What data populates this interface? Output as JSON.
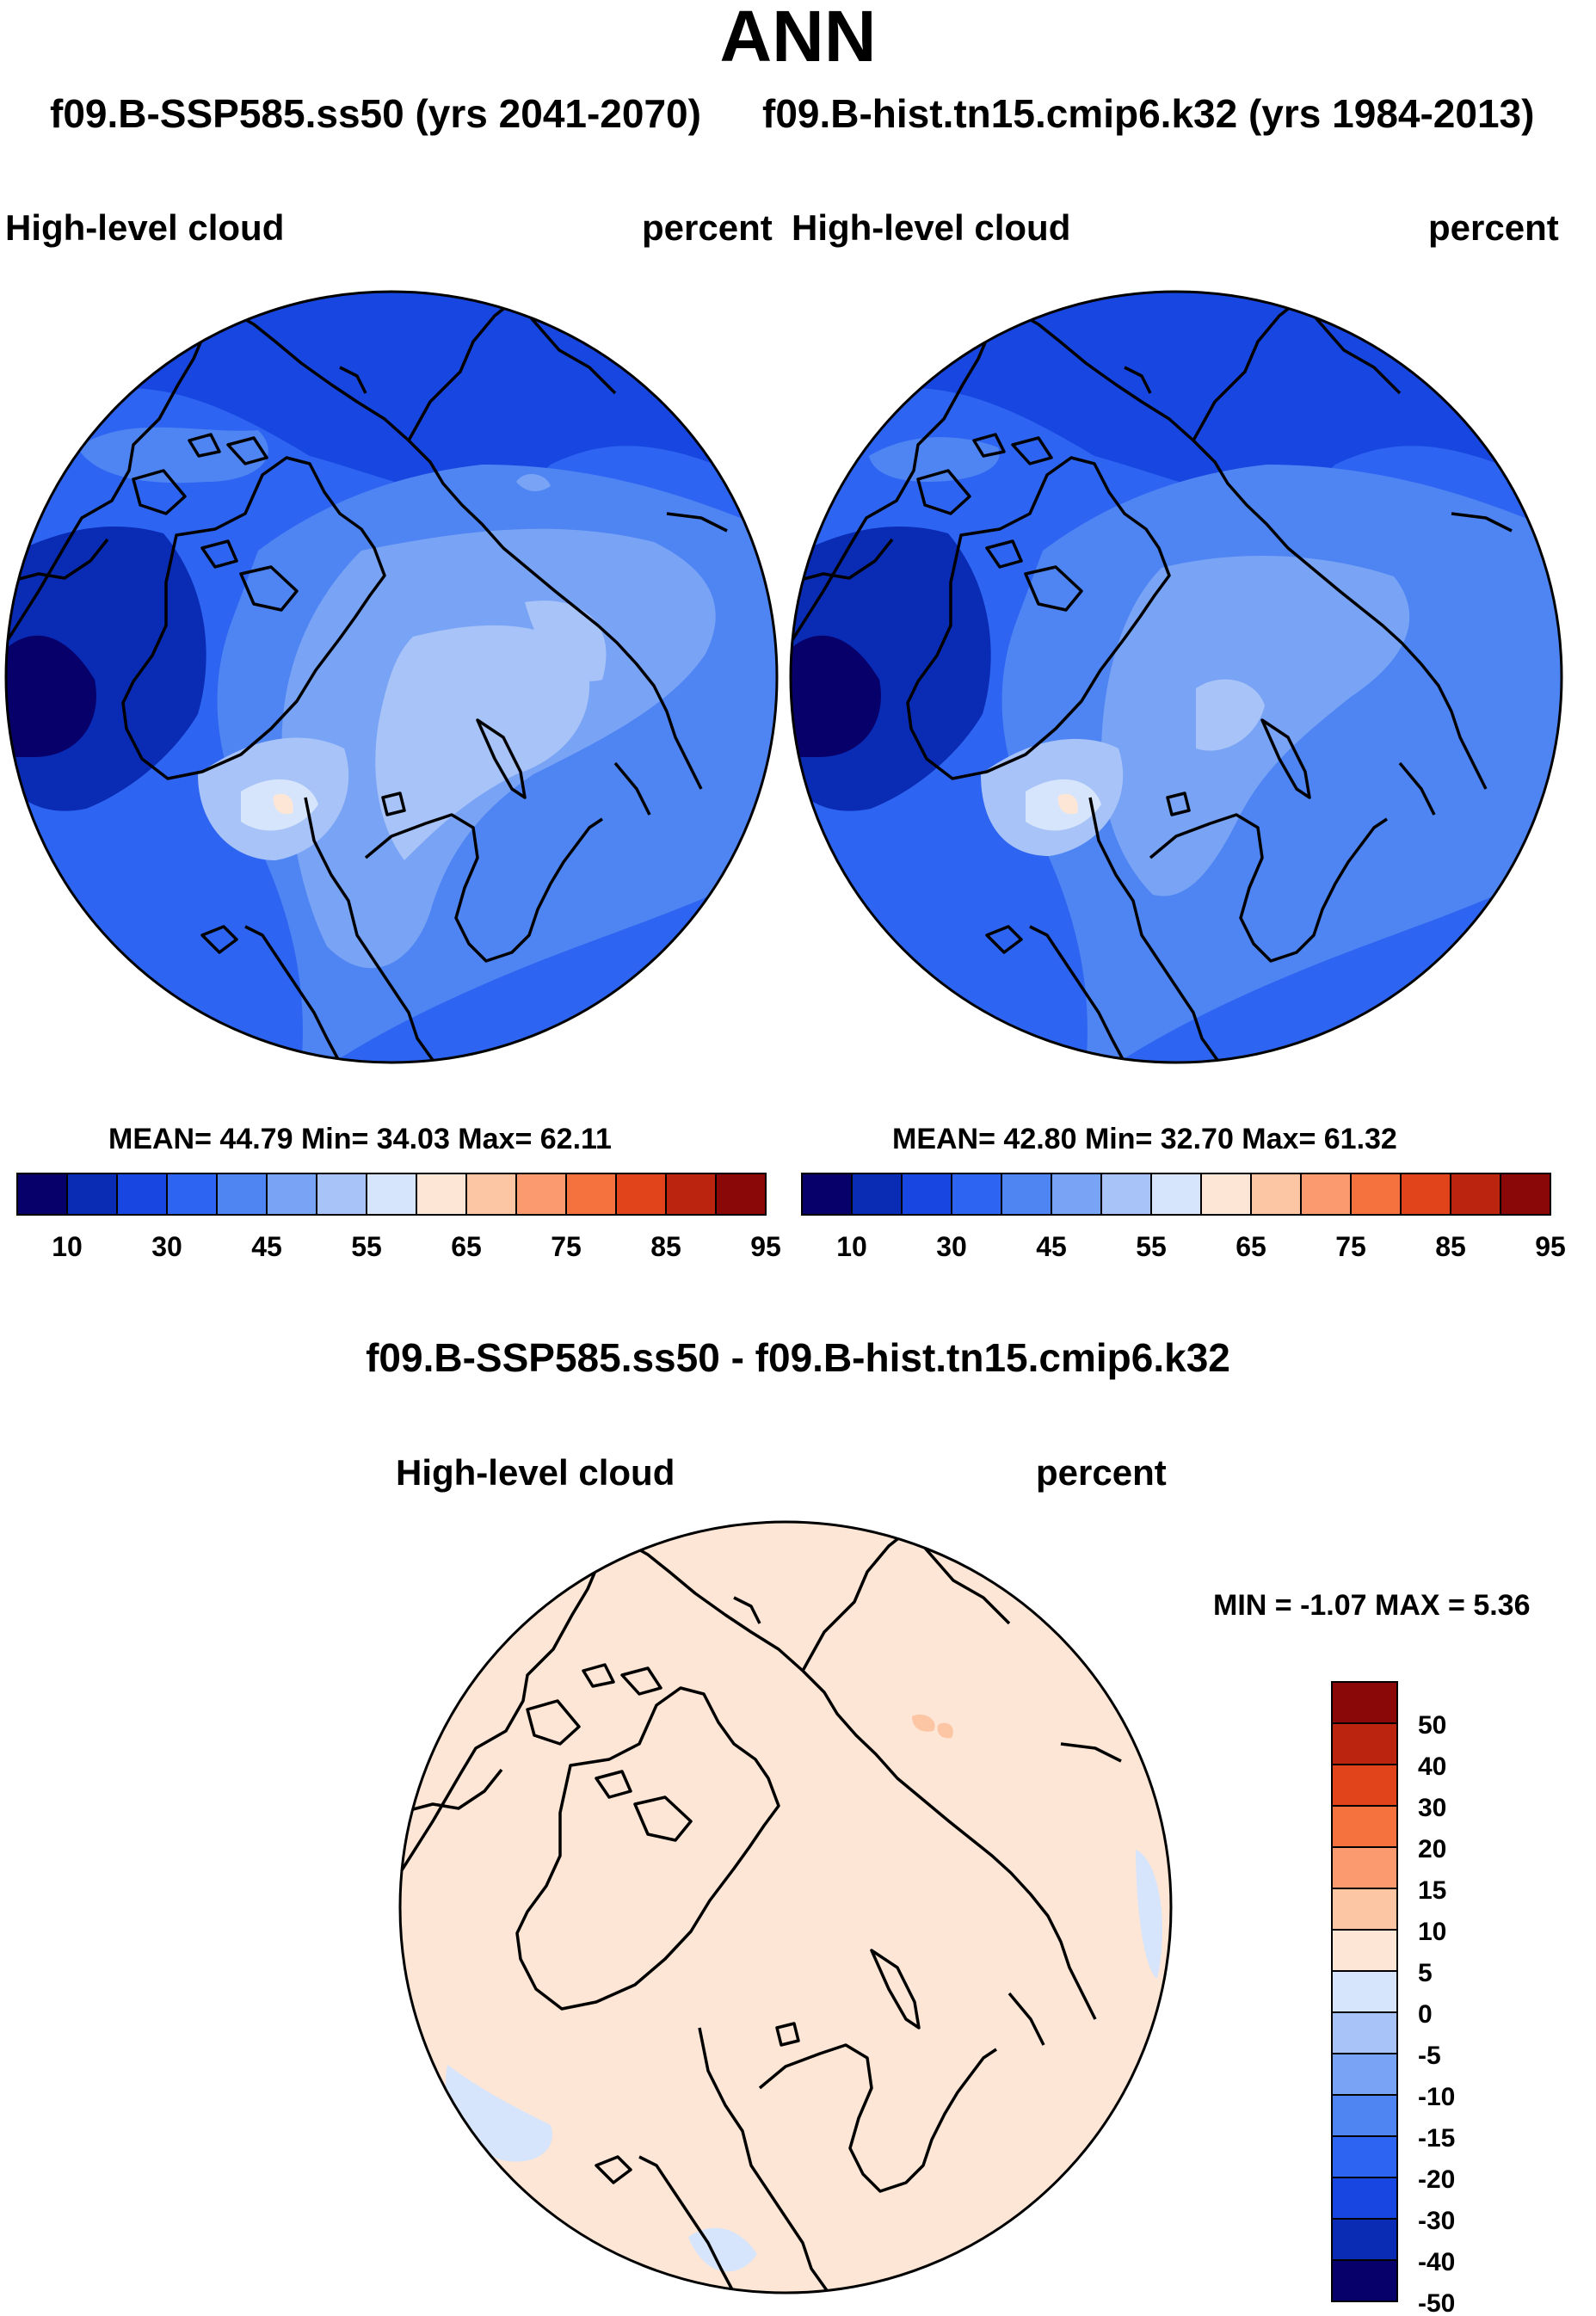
{
  "header": {
    "title": "ANN",
    "subtitle_left": "f09.B-SSP585.ss50 (yrs 2041-2070)",
    "subtitle_right": "f09.B-hist.tn15.cmip6.k32 (yrs 1984-2013)"
  },
  "panels": [
    {
      "variable": "High-level cloud",
      "units": "percent",
      "stats": "MEAN=  44.79  Min=  34.03  Max=  62.11",
      "levels": [
        10,
        30,
        45,
        55,
        65,
        75,
        85,
        95
      ]
    },
    {
      "variable": "High-level cloud",
      "units": "percent",
      "stats": "MEAN=  42.80  Min=  32.70  Max=  61.32",
      "levels": [
        10,
        30,
        45,
        55,
        65,
        75,
        85,
        95
      ]
    }
  ],
  "difference": {
    "title": "f09.B-SSP585.ss50 - f09.B-hist.tn15.cmip6.k32",
    "variable": "High-level cloud",
    "units": "percent",
    "minmax": "MIN =  -1.07 MAX =   5.36",
    "levels": [
      "50",
      "40",
      "30",
      "20",
      "15",
      "10",
      "5",
      "0",
      "-5",
      "-10",
      "-15",
      "-20",
      "-30",
      "-40",
      "-50"
    ]
  },
  "colors": {
    "abs_scale": [
      "#08006a",
      "#0a2bb4",
      "#1846e0",
      "#2d65f2",
      "#4f85f3",
      "#79a3f5",
      "#a8c3f7",
      "#d6e5fb",
      "#fde6d6",
      "#fcc5a4",
      "#fb9a6f",
      "#f5713d",
      "#e1431a",
      "#bb240e",
      "#8a0808"
    ],
    "diff_scale": [
      "#8a0808",
      "#bb240e",
      "#e1431a",
      "#f5713d",
      "#fb9a6f",
      "#fcc5a4",
      "#fde6d6",
      "#d6e5fb",
      "#a8c3f7",
      "#79a3f5",
      "#4f85f3",
      "#2d65f2",
      "#1846e0",
      "#0a2bb4",
      "#08006a"
    ]
  }
}
